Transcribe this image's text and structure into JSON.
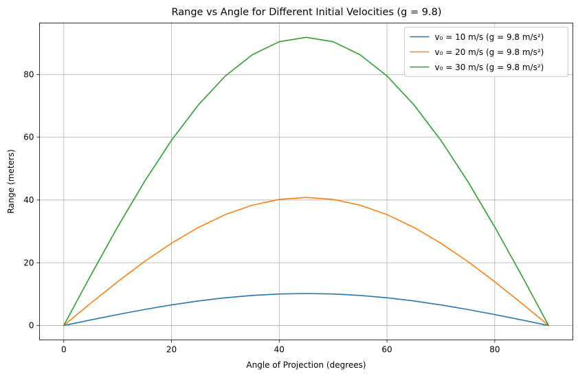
{
  "chart_data": {
    "type": "line",
    "title": "Range vs Angle for Different Initial Velocities (g = 9.8)",
    "xlabel": "Angle of Projection (degrees)",
    "ylabel": "Range (meters)",
    "xlim": [
      -4.5,
      94.5
    ],
    "ylim": [
      -4.59,
      96.4
    ],
    "xticks": [
      0,
      20,
      40,
      60,
      80
    ],
    "yticks": [
      0,
      20,
      40,
      60,
      80
    ],
    "grid": true,
    "legend_position": "top-right",
    "x": [
      0,
      5,
      10,
      15,
      20,
      25,
      30,
      35,
      40,
      45,
      50,
      55,
      60,
      65,
      70,
      75,
      80,
      85,
      90
    ],
    "series": [
      {
        "name": "v₀ = 10 m/s (g = 9.8 m/s²)",
        "color": "#1f77b4",
        "values": [
          0,
          1.77,
          3.49,
          5.1,
          6.56,
          7.82,
          8.84,
          9.59,
          10.05,
          10.2,
          10.05,
          9.59,
          8.84,
          7.82,
          6.56,
          5.1,
          3.49,
          1.77,
          0
        ]
      },
      {
        "name": "v₀ = 20 m/s (g = 9.8 m/s²)",
        "color": "#ff7f0e",
        "values": [
          0,
          7.09,
          13.96,
          20.41,
          26.23,
          31.26,
          35.35,
          38.35,
          40.2,
          40.82,
          40.2,
          38.35,
          35.35,
          31.26,
          26.23,
          20.41,
          13.96,
          7.09,
          0
        ]
      },
      {
        "name": "v₀ = 30 m/s (g = 9.8 m/s²)",
        "color": "#2ca02c",
        "values": [
          0,
          15.95,
          31.41,
          45.92,
          59.03,
          70.34,
          79.53,
          86.3,
          90.45,
          91.84,
          90.45,
          86.3,
          79.53,
          70.34,
          59.03,
          45.92,
          31.41,
          15.95,
          0
        ]
      }
    ]
  }
}
